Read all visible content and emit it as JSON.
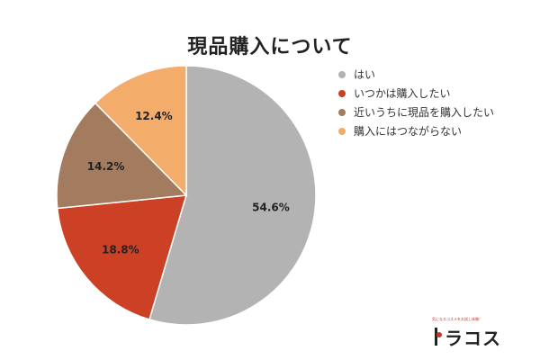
{
  "chart_data": {
    "type": "pie",
    "title": "現品購入について",
    "start_angle_deg": 0,
    "direction": "clockwise",
    "legend_position": "right",
    "slices": [
      {
        "label": "はい",
        "value": 54.6,
        "display": "54.6%",
        "color": "#b3b3b3"
      },
      {
        "label": "いつかは購入したい",
        "value": 18.8,
        "display": "18.8%",
        "color": "#cc4125"
      },
      {
        "label": "近いうちに現品を購入したい",
        "value": 14.2,
        "display": "14.2%",
        "color": "#a37b5f"
      },
      {
        "label": "購入にはつながらない",
        "value": 12.4,
        "display": "12.4%",
        "color": "#f4ac6b"
      }
    ]
  },
  "logo": {
    "tagline": "気になるコスメをお試し体験！",
    "name": "ラコス",
    "color": "#c0392b"
  }
}
